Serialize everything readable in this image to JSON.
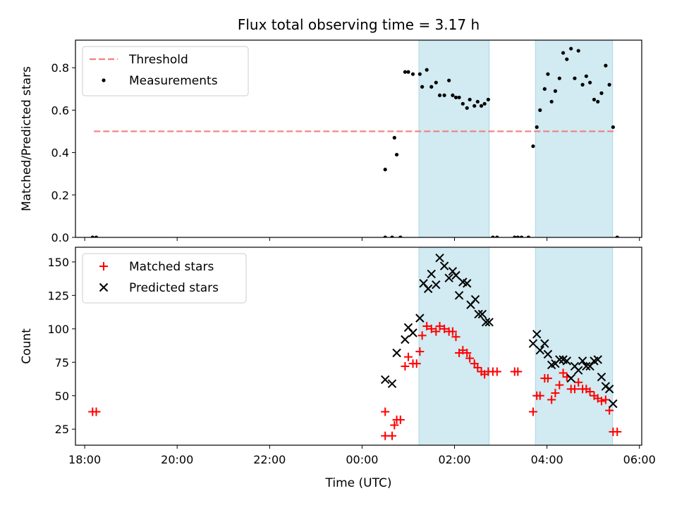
{
  "chart_data": {
    "title": "Flux total observing time = 3.17 h",
    "xlabel": "Time (UTC)",
    "x_ticks": [
      "18:00",
      "20:00",
      "22:00",
      "00:00",
      "02:00",
      "04:00",
      "06:00"
    ],
    "x_range_hours": [
      17.8,
      30.05
    ],
    "shaded_intervals_hours": [
      [
        25.23,
        26.75
      ],
      [
        27.75,
        29.42
      ]
    ],
    "shade_color": "#add8e6",
    "panels": [
      {
        "type": "scatter",
        "ylabel": "Matched/Predicted stars",
        "ylim": [
          0,
          0.93
        ],
        "yticks": [
          0.0,
          0.2,
          0.4,
          0.6,
          0.8
        ],
        "ytick_labels": [
          "0.0",
          "0.2",
          "0.4",
          "0.6",
          "0.8"
        ],
        "legend_position": "upper-left",
        "threshold": {
          "name": "Threshold",
          "value": 0.5,
          "x_start": 18.2,
          "x_end": 29.5,
          "color": "#f08080"
        },
        "series": [
          {
            "name": "Measurements",
            "color": "#000000",
            "marker": "dot",
            "points": [
              [
                18.17,
                0.0
              ],
              [
                18.25,
                0.0
              ],
              [
                24.5,
                0.32
              ],
              [
                24.5,
                0.0
              ],
              [
                24.65,
                0.0
              ],
              [
                24.7,
                0.47
              ],
              [
                24.75,
                0.39
              ],
              [
                24.83,
                0.0
              ],
              [
                24.93,
                0.78
              ],
              [
                25.0,
                0.78
              ],
              [
                25.1,
                0.77
              ],
              [
                25.25,
                0.77
              ],
              [
                25.3,
                0.71
              ],
              [
                25.4,
                0.79
              ],
              [
                25.5,
                0.71
              ],
              [
                25.6,
                0.73
              ],
              [
                25.68,
                0.67
              ],
              [
                25.78,
                0.67
              ],
              [
                25.88,
                0.74
              ],
              [
                25.96,
                0.67
              ],
              [
                26.03,
                0.66
              ],
              [
                26.1,
                0.66
              ],
              [
                26.18,
                0.63
              ],
              [
                26.27,
                0.61
              ],
              [
                26.33,
                0.65
              ],
              [
                26.43,
                0.62
              ],
              [
                26.5,
                0.64
              ],
              [
                26.58,
                0.62
              ],
              [
                26.65,
                0.63
              ],
              [
                26.73,
                0.65
              ],
              [
                26.83,
                0.0
              ],
              [
                26.92,
                0.0
              ],
              [
                27.3,
                0.0
              ],
              [
                27.37,
                0.0
              ],
              [
                27.45,
                0.0
              ],
              [
                27.6,
                0.0
              ],
              [
                27.7,
                0.43
              ],
              [
                27.78,
                0.52
              ],
              [
                27.85,
                0.6
              ],
              [
                27.95,
                0.7
              ],
              [
                28.02,
                0.77
              ],
              [
                28.1,
                0.64
              ],
              [
                28.18,
                0.69
              ],
              [
                28.27,
                0.75
              ],
              [
                28.35,
                0.87
              ],
              [
                28.43,
                0.84
              ],
              [
                28.52,
                0.89
              ],
              [
                28.6,
                0.75
              ],
              [
                28.68,
                0.88
              ],
              [
                28.77,
                0.72
              ],
              [
                28.85,
                0.76
              ],
              [
                28.93,
                0.73
              ],
              [
                29.02,
                0.65
              ],
              [
                29.1,
                0.64
              ],
              [
                29.18,
                0.68
              ],
              [
                29.27,
                0.81
              ],
              [
                29.35,
                0.72
              ],
              [
                29.43,
                0.52
              ],
              [
                29.52,
                0.0
              ]
            ]
          }
        ]
      },
      {
        "type": "scatter",
        "ylabel": "Count",
        "ylim": [
          13,
          161
        ],
        "yticks": [
          25,
          50,
          75,
          100,
          125,
          150
        ],
        "ytick_labels": [
          "25",
          "50",
          "75",
          "100",
          "125",
          "150"
        ],
        "legend_position": "upper-left",
        "series": [
          {
            "name": "Matched stars",
            "color": "#ff0000",
            "marker": "plus",
            "points": [
              [
                18.17,
                38
              ],
              [
                18.25,
                38
              ],
              [
                24.5,
                38
              ],
              [
                24.5,
                20
              ],
              [
                24.65,
                20
              ],
              [
                24.7,
                28
              ],
              [
                24.75,
                32
              ],
              [
                24.83,
                32
              ],
              [
                24.93,
                72
              ],
              [
                25.0,
                79
              ],
              [
                25.1,
                74
              ],
              [
                25.18,
                74
              ],
              [
                25.25,
                83
              ],
              [
                25.3,
                95
              ],
              [
                25.4,
                102
              ],
              [
                25.5,
                100
              ],
              [
                25.6,
                98
              ],
              [
                25.68,
                102
              ],
              [
                25.78,
                100
              ],
              [
                25.88,
                98
              ],
              [
                25.96,
                98
              ],
              [
                26.03,
                94
              ],
              [
                26.1,
                82
              ],
              [
                26.18,
                84
              ],
              [
                26.27,
                82
              ],
              [
                26.33,
                78
              ],
              [
                26.43,
                74
              ],
              [
                26.5,
                71
              ],
              [
                26.58,
                68
              ],
              [
                26.65,
                66
              ],
              [
                26.73,
                68
              ],
              [
                26.83,
                68
              ],
              [
                26.92,
                68
              ],
              [
                27.3,
                68
              ],
              [
                27.37,
                68
              ],
              [
                27.7,
                38
              ],
              [
                27.78,
                50
              ],
              [
                27.85,
                50
              ],
              [
                27.95,
                63
              ],
              [
                28.02,
                63
              ],
              [
                28.1,
                47
              ],
              [
                28.18,
                52
              ],
              [
                28.27,
                58
              ],
              [
                28.35,
                67
              ],
              [
                28.43,
                64
              ],
              [
                28.52,
                55
              ],
              [
                28.6,
                55
              ],
              [
                28.68,
                60
              ],
              [
                28.77,
                55
              ],
              [
                28.85,
                55
              ],
              [
                28.93,
                53
              ],
              [
                29.02,
                50
              ],
              [
                29.1,
                48
              ],
              [
                29.18,
                46
              ],
              [
                29.27,
                47
              ],
              [
                29.35,
                39
              ],
              [
                29.43,
                23
              ],
              [
                29.52,
                23
              ]
            ]
          },
          {
            "name": "Predicted stars",
            "color": "#000000",
            "marker": "x",
            "points": [
              [
                24.5,
                62
              ],
              [
                24.65,
                59
              ],
              [
                24.75,
                82
              ],
              [
                24.93,
                92
              ],
              [
                25.0,
                101
              ],
              [
                25.1,
                97
              ],
              [
                25.25,
                108
              ],
              [
                25.33,
                134
              ],
              [
                25.43,
                130
              ],
              [
                25.5,
                141
              ],
              [
                25.6,
                133
              ],
              [
                25.68,
                153
              ],
              [
                25.78,
                147
              ],
              [
                25.88,
                138
              ],
              [
                25.96,
                143
              ],
              [
                26.03,
                140
              ],
              [
                26.1,
                125
              ],
              [
                26.18,
                135
              ],
              [
                26.27,
                134
              ],
              [
                26.35,
                118
              ],
              [
                26.45,
                122
              ],
              [
                26.52,
                111
              ],
              [
                26.6,
                111
              ],
              [
                26.68,
                105
              ],
              [
                26.75,
                105
              ],
              [
                27.7,
                89
              ],
              [
                27.78,
                96
              ],
              [
                27.85,
                84
              ],
              [
                27.95,
                89
              ],
              [
                28.02,
                81
              ],
              [
                28.1,
                73
              ],
              [
                28.18,
                74
              ],
              [
                28.27,
                77
              ],
              [
                28.35,
                77
              ],
              [
                28.43,
                76
              ],
              [
                28.52,
                63
              ],
              [
                28.6,
                72
              ],
              [
                28.68,
                69
              ],
              [
                28.77,
                76
              ],
              [
                28.85,
                72
              ],
              [
                28.93,
                72
              ],
              [
                29.02,
                76
              ],
              [
                29.1,
                77
              ],
              [
                29.18,
                64
              ],
              [
                29.27,
                57
              ],
              [
                29.35,
                55
              ],
              [
                29.43,
                44
              ]
            ]
          }
        ]
      }
    ]
  }
}
